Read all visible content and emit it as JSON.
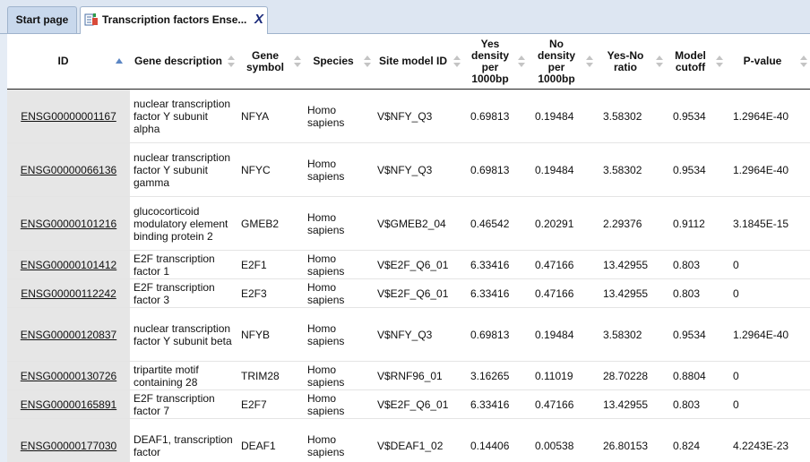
{
  "tabs": {
    "start_label": "Start page",
    "active_label": "Transcription factors Ense...",
    "close_glyph": "X"
  },
  "table": {
    "columns": [
      {
        "label": "ID",
        "sort": "asc"
      },
      {
        "label": "Gene description"
      },
      {
        "label": "Gene symbol"
      },
      {
        "label": "Species"
      },
      {
        "label": "Site model ID"
      },
      {
        "label": "Yes density per 1000bp"
      },
      {
        "label": "No density per 1000bp"
      },
      {
        "label": "Yes-No ratio"
      },
      {
        "label": "Model cutoff"
      },
      {
        "label": "P-value"
      }
    ],
    "rows": [
      {
        "id": "ENSG00000001167",
        "desc": "nuclear transcription factor Y subunit alpha",
        "symbol": "NFYA",
        "species": "Homo sapiens",
        "site": "V$NFY_Q3",
        "yes": "0.69813",
        "no": "0.19484",
        "ratio": "3.58302",
        "cutoff": "0.9534",
        "pvalue": "1.2964E-40"
      },
      {
        "id": "ENSG00000066136",
        "desc": "nuclear transcription factor Y subunit gamma",
        "symbol": "NFYC",
        "species": "Homo sapiens",
        "site": "V$NFY_Q3",
        "yes": "0.69813",
        "no": "0.19484",
        "ratio": "3.58302",
        "cutoff": "0.9534",
        "pvalue": "1.2964E-40"
      },
      {
        "id": "ENSG00000101216",
        "desc": "glucocorticoid modulatory element binding protein 2",
        "symbol": "GMEB2",
        "species": "Homo sapiens",
        "site": "V$GMEB2_04",
        "yes": "0.46542",
        "no": "0.20291",
        "ratio": "2.29376",
        "cutoff": "0.9112",
        "pvalue": "3.1845E-15"
      },
      {
        "id": "ENSG00000101412",
        "desc": "E2F transcription factor 1",
        "symbol": "E2F1",
        "species": "Homo sapiens",
        "site": "V$E2F_Q6_01",
        "yes": "6.33416",
        "no": "0.47166",
        "ratio": "13.42955",
        "cutoff": "0.803",
        "pvalue": "0"
      },
      {
        "id": "ENSG00000112242",
        "desc": "E2F transcription factor 3",
        "symbol": "E2F3",
        "species": "Homo sapiens",
        "site": "V$E2F_Q6_01",
        "yes": "6.33416",
        "no": "0.47166",
        "ratio": "13.42955",
        "cutoff": "0.803",
        "pvalue": "0"
      },
      {
        "id": "ENSG00000120837",
        "desc": "nuclear transcription factor Y subunit beta",
        "symbol": "NFYB",
        "species": "Homo sapiens",
        "site": "V$NFY_Q3",
        "yes": "0.69813",
        "no": "0.19484",
        "ratio": "3.58302",
        "cutoff": "0.9534",
        "pvalue": "1.2964E-40"
      },
      {
        "id": "ENSG00000130726",
        "desc": "tripartite motif containing 28",
        "symbol": "TRIM28",
        "species": "Homo sapiens",
        "site": "V$RNF96_01",
        "yes": "3.16265",
        "no": "0.11019",
        "ratio": "28.70228",
        "cutoff": "0.8804",
        "pvalue": "0"
      },
      {
        "id": "ENSG00000165891",
        "desc": "E2F transcription factor 7",
        "symbol": "E2F7",
        "species": "Homo sapiens",
        "site": "V$E2F_Q6_01",
        "yes": "6.33416",
        "no": "0.47166",
        "ratio": "13.42955",
        "cutoff": "0.803",
        "pvalue": "0"
      },
      {
        "id": "ENSG00000177030",
        "desc": "DEAF1, transcription factor",
        "symbol": "DEAF1",
        "species": "Homo sapiens",
        "site": "V$DEAF1_02",
        "yes": "0.14406",
        "no": "0.00538",
        "ratio": "26.80153",
        "cutoff": "0.824",
        "pvalue": "4.2243E-23"
      }
    ]
  }
}
